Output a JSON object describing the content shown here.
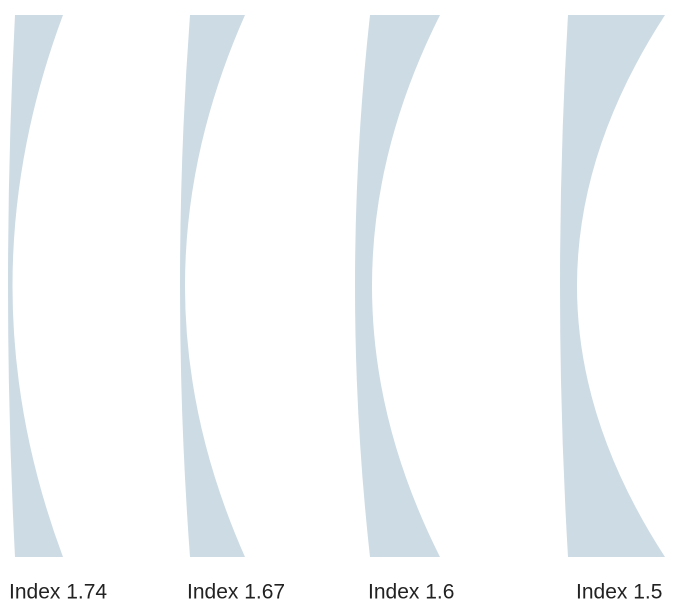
{
  "lenses": [
    {
      "label": "Index 1.74"
    },
    {
      "label": "Index 1.67"
    },
    {
      "label": "Index 1.6"
    },
    {
      "label": "Index 1.5"
    }
  ]
}
